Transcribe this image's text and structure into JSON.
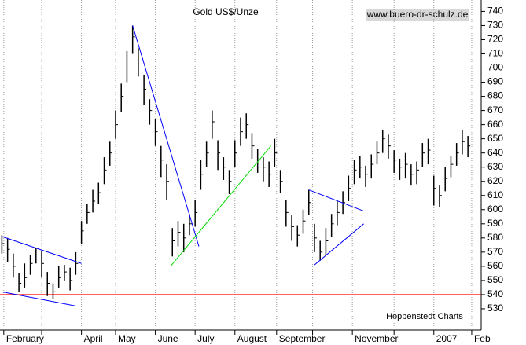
{
  "chart_data": {
    "type": "ohlc",
    "title": "Gold US$/Unze",
    "source": "www.buero-dr-schulz.de",
    "credit": "Hoppenstedt Charts",
    "color": "#000000",
    "x": [
      0,
      3,
      6,
      9,
      12,
      15,
      18,
      21,
      24,
      27,
      30,
      33,
      36,
      39,
      42,
      45,
      48,
      51,
      54,
      57,
      60,
      63,
      66,
      69,
      72,
      75,
      78,
      81,
      84,
      87,
      90,
      93,
      96,
      99,
      102,
      105,
      108,
      111,
      114,
      117,
      120,
      123,
      126,
      129,
      132,
      135,
      138,
      141,
      144,
      147,
      150,
      153,
      156,
      159,
      162,
      165,
      168,
      171,
      174,
      177,
      180,
      183,
      186,
      189,
      192,
      195,
      198,
      201,
      204,
      207,
      210,
      213,
      216,
      219,
      222,
      225,
      228,
      231,
      234,
      237,
      240,
      243,
      246
    ],
    "high": [
      582,
      580,
      569,
      555,
      562,
      568,
      573,
      571,
      556,
      548,
      560,
      561,
      559,
      570,
      592,
      604,
      614,
      619,
      637,
      648,
      670,
      689,
      712,
      730,
      714,
      695,
      678,
      664,
      645,
      632,
      587,
      592,
      590,
      597,
      607,
      635,
      648,
      670,
      649,
      637,
      628,
      649,
      665,
      668,
      654,
      643,
      637,
      634,
      650,
      628,
      607,
      596,
      589,
      600,
      614,
      590,
      578,
      587,
      597,
      606,
      613,
      624,
      635,
      638,
      631,
      639,
      648,
      656,
      653,
      642,
      636,
      640,
      632,
      634,
      647,
      650,
      624,
      617,
      630,
      638,
      647,
      656,
      652
    ],
    "low": [
      569,
      563,
      552,
      542,
      545,
      554,
      562,
      552,
      539,
      537,
      545,
      550,
      543,
      554,
      576,
      590,
      598,
      604,
      618,
      631,
      650,
      669,
      690,
      710,
      694,
      674,
      660,
      645,
      623,
      607,
      567,
      574,
      570,
      582,
      588,
      614,
      630,
      650,
      628,
      621,
      611,
      630,
      645,
      650,
      636,
      626,
      620,
      616,
      630,
      612,
      588,
      578,
      574,
      583,
      596,
      570,
      564,
      568,
      581,
      589,
      597,
      606,
      618,
      622,
      616,
      622,
      632,
      640,
      636,
      626,
      621,
      622,
      617,
      618,
      630,
      632,
      603,
      602,
      613,
      623,
      631,
      639,
      637
    ],
    "close": [
      576,
      572,
      560,
      548,
      552,
      562,
      568,
      562,
      548,
      542,
      552,
      556,
      550,
      562,
      585,
      598,
      606,
      612,
      628,
      640,
      660,
      680,
      700,
      722,
      705,
      685,
      670,
      655,
      635,
      620,
      578,
      584,
      580,
      590,
      598,
      625,
      640,
      662,
      640,
      630,
      620,
      640,
      655,
      660,
      645,
      635,
      630,
      625,
      640,
      620,
      598,
      588,
      582,
      592,
      605,
      580,
      570,
      578,
      590,
      598,
      605,
      615,
      628,
      630,
      625,
      632,
      640,
      650,
      645,
      635,
      630,
      632,
      625,
      628,
      640,
      642,
      615,
      610,
      622,
      632,
      640,
      648,
      645
    ],
    "xlim": [
      -1,
      253
    ],
    "xticks": [
      {
        "value": 1,
        "label": "February"
      },
      {
        "value": 21,
        "label": null
      },
      {
        "value": 42,
        "label": "April"
      },
      {
        "value": 60,
        "label": "May"
      },
      {
        "value": 81,
        "label": "June"
      },
      {
        "value": 102,
        "label": "July"
      },
      {
        "value": 123,
        "label": "August"
      },
      {
        "value": 145,
        "label": "September"
      },
      {
        "value": 164,
        "label": null
      },
      {
        "value": 185,
        "label": "November"
      },
      {
        "value": 207,
        "label": null
      },
      {
        "value": 228,
        "label": "2007"
      },
      {
        "value": 248,
        "label": "Feb"
      }
    ],
    "ylim": [
      515,
      748
    ],
    "yticks": [
      530,
      540,
      550,
      560,
      570,
      580,
      590,
      600,
      610,
      620,
      630,
      640,
      650,
      660,
      670,
      680,
      690,
      700,
      710,
      720,
      730,
      740
    ],
    "grid": true,
    "reference_line": {
      "value": 540,
      "color": "#ff0000"
    },
    "trendlines": [
      {
        "color": "#0000ff",
        "points": [
          [
            0,
            581
          ],
          [
            42,
            562
          ]
        ]
      },
      {
        "color": "#0000ff",
        "points": [
          [
            0,
            542
          ],
          [
            39,
            532
          ]
        ]
      },
      {
        "color": "#0000ff",
        "points": [
          [
            69,
            730
          ],
          [
            104,
            574
          ]
        ]
      },
      {
        "color": "#00dd00",
        "points": [
          [
            89,
            560
          ],
          [
            142,
            645
          ]
        ]
      },
      {
        "color": "#0000ff",
        "points": [
          [
            162,
            614
          ],
          [
            191,
            599
          ]
        ]
      },
      {
        "color": "#0000ff",
        "points": [
          [
            165,
            561
          ],
          [
            191,
            590
          ]
        ]
      }
    ]
  }
}
